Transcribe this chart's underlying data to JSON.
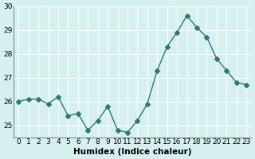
{
  "x": [
    0,
    1,
    2,
    3,
    4,
    5,
    6,
    7,
    8,
    9,
    10,
    11,
    12,
    13,
    14,
    15,
    16,
    17,
    18,
    19,
    20,
    21,
    22,
    23
  ],
  "y": [
    26.0,
    26.1,
    26.1,
    25.9,
    26.2,
    25.4,
    25.5,
    24.8,
    25.2,
    25.8,
    24.8,
    24.7,
    25.2,
    25.9,
    27.3,
    28.3,
    28.9,
    29.6,
    29.1,
    28.7,
    27.8,
    27.3,
    26.8,
    26.7
  ],
  "line_color": "#2d7a6e",
  "marker": "D",
  "marker_size": 3,
  "bg_color": "#d6f0f0",
  "grid_color": "#ffffff",
  "xlabel": "Humidex (Indice chaleur)",
  "ylabel": "",
  "title": "",
  "xlim": [
    -0.5,
    23.5
  ],
  "ylim": [
    24.5,
    30.0
  ],
  "yticks": [
    25,
    26,
    27,
    28,
    29,
    30
  ],
  "xticks": [
    0,
    1,
    2,
    3,
    4,
    5,
    6,
    7,
    8,
    9,
    10,
    11,
    12,
    13,
    14,
    15,
    16,
    17,
    18,
    19,
    20,
    21,
    22,
    23
  ],
  "xlabel_fontsize": 7.5,
  "tick_fontsize": 6.5
}
